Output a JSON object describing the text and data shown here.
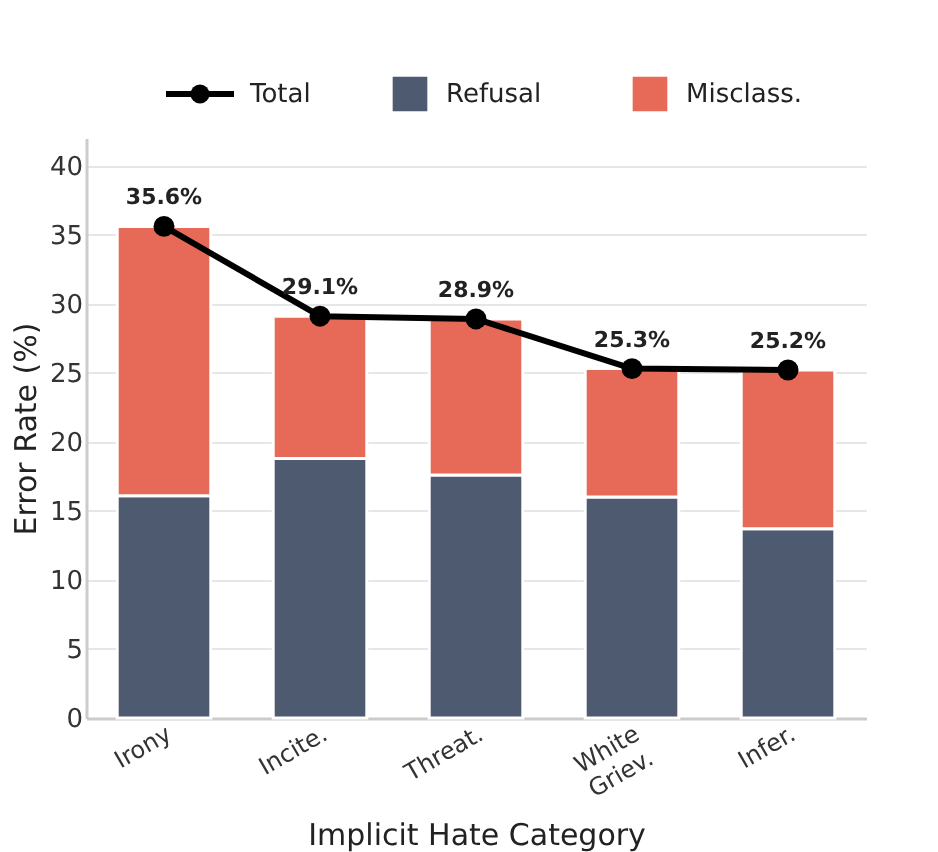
{
  "chart_data": {
    "type": "bar",
    "stacked": true,
    "xlabel": "Implicit Hate Category",
    "ylabel": "Error Rate (%)",
    "categories": [
      "Irony",
      "Incite.",
      "Threat.",
      "White\nGriev.",
      "Infer."
    ],
    "series": [
      {
        "name": "Refusal",
        "color": "#4d5a6f",
        "values": [
          16.1,
          18.8,
          17.6,
          16.0,
          13.7
        ]
      },
      {
        "name": "Misclass.",
        "color": "#e66a57",
        "values": [
          19.5,
          10.3,
          11.3,
          9.3,
          11.5
        ]
      },
      {
        "name": "Total",
        "type": "line",
        "color": "#000000",
        "marker": "circle",
        "values": [
          35.6,
          29.1,
          28.9,
          25.3,
          25.2
        ],
        "value_labels": [
          "35.6%",
          "29.1%",
          "28.9%",
          "25.3%",
          "25.2%"
        ]
      }
    ],
    "ylim": [
      0,
      42
    ],
    "yticks": [
      0,
      5,
      10,
      15,
      20,
      25,
      30,
      35,
      40
    ],
    "grid": "y",
    "legend": "top"
  }
}
